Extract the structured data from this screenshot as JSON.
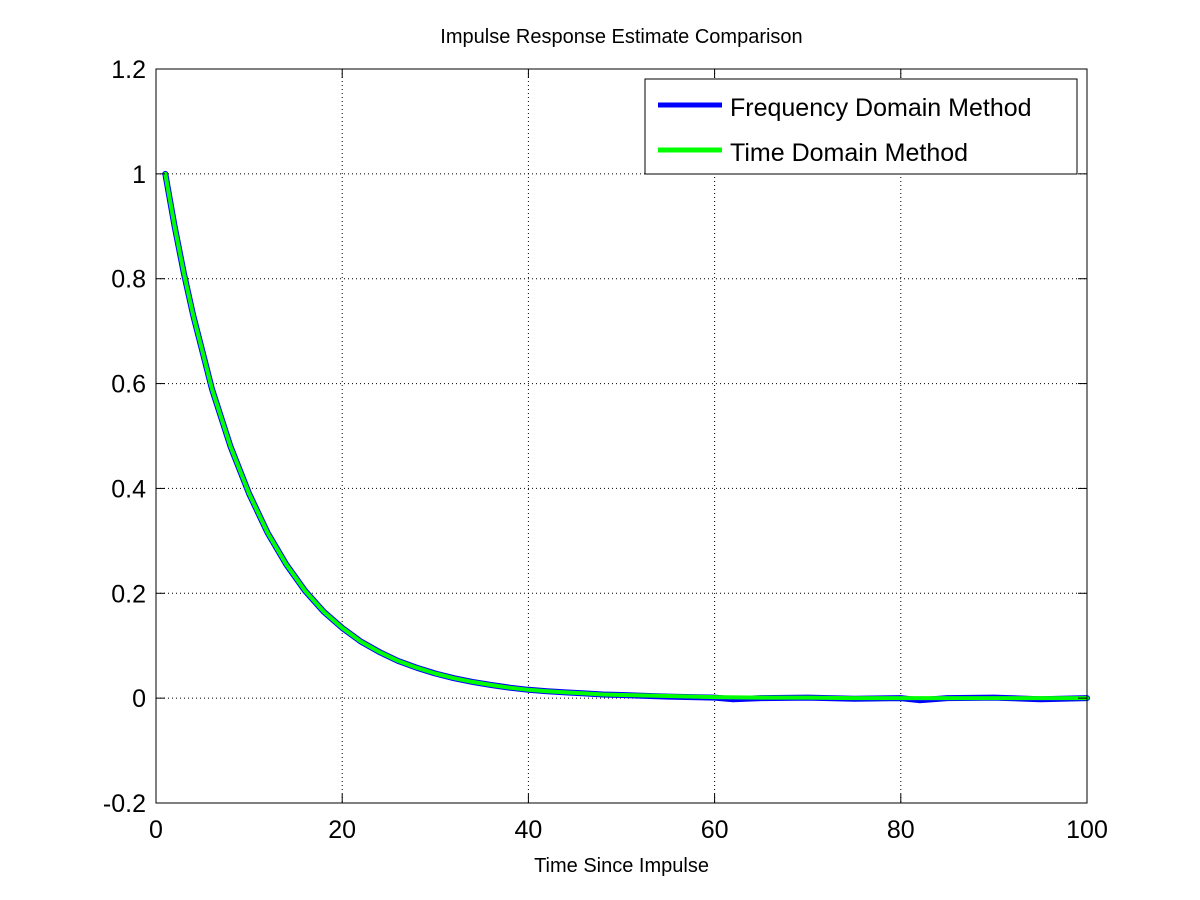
{
  "chart_data": {
    "type": "line",
    "title": "Impulse Response Estimate Comparison",
    "xlabel": "Time Since Impulse",
    "ylabel": "",
    "xlim": [
      0,
      100
    ],
    "ylim": [
      -0.2,
      1.2
    ],
    "xticks": [
      0,
      20,
      40,
      60,
      80,
      100
    ],
    "yticks": [
      -0.2,
      0,
      0.2,
      0.4,
      0.6,
      0.8,
      1,
      1.2
    ],
    "grid": true,
    "legend_position": "top-right",
    "series": [
      {
        "name": "Frequency Domain Method",
        "color": "#0000ff",
        "x": [
          1,
          2,
          3,
          4,
          5,
          6,
          8,
          10,
          12,
          14,
          16,
          18,
          20,
          22,
          24,
          26,
          28,
          30,
          32,
          34,
          36,
          38,
          40,
          42,
          44,
          46,
          48,
          50,
          55,
          60,
          62,
          65,
          70,
          75,
          80,
          82,
          85,
          90,
          95,
          100
        ],
        "y": [
          1.0,
          0.9,
          0.81,
          0.73,
          0.66,
          0.59,
          0.48,
          0.39,
          0.315,
          0.255,
          0.205,
          0.165,
          0.134,
          0.108,
          0.088,
          0.071,
          0.058,
          0.047,
          0.038,
          0.031,
          0.025,
          0.02,
          0.016,
          0.013,
          0.011,
          0.009,
          0.007,
          0.006,
          0.003,
          0.001,
          -0.002,
          0.0,
          0.001,
          -0.001,
          0.0,
          -0.004,
          0.0,
          0.001,
          -0.002,
          0.0
        ]
      },
      {
        "name": "Time Domain Method",
        "color": "#00ff00",
        "x": [
          1,
          2,
          3,
          4,
          5,
          6,
          8,
          10,
          12,
          14,
          16,
          18,
          20,
          22,
          24,
          26,
          28,
          30,
          32,
          34,
          36,
          38,
          40,
          42,
          44,
          46,
          48,
          50,
          55,
          60,
          65,
          70,
          75,
          80,
          85,
          90,
          95,
          100
        ],
        "y": [
          1.0,
          0.9,
          0.81,
          0.73,
          0.66,
          0.59,
          0.48,
          0.39,
          0.315,
          0.255,
          0.205,
          0.165,
          0.134,
          0.108,
          0.088,
          0.071,
          0.058,
          0.047,
          0.038,
          0.031,
          0.025,
          0.02,
          0.016,
          0.013,
          0.011,
          0.009,
          0.007,
          0.006,
          0.004,
          0.002,
          0.001,
          0.001,
          0.0,
          0.0,
          0.0,
          0.0,
          0.0,
          0.0
        ]
      }
    ]
  }
}
